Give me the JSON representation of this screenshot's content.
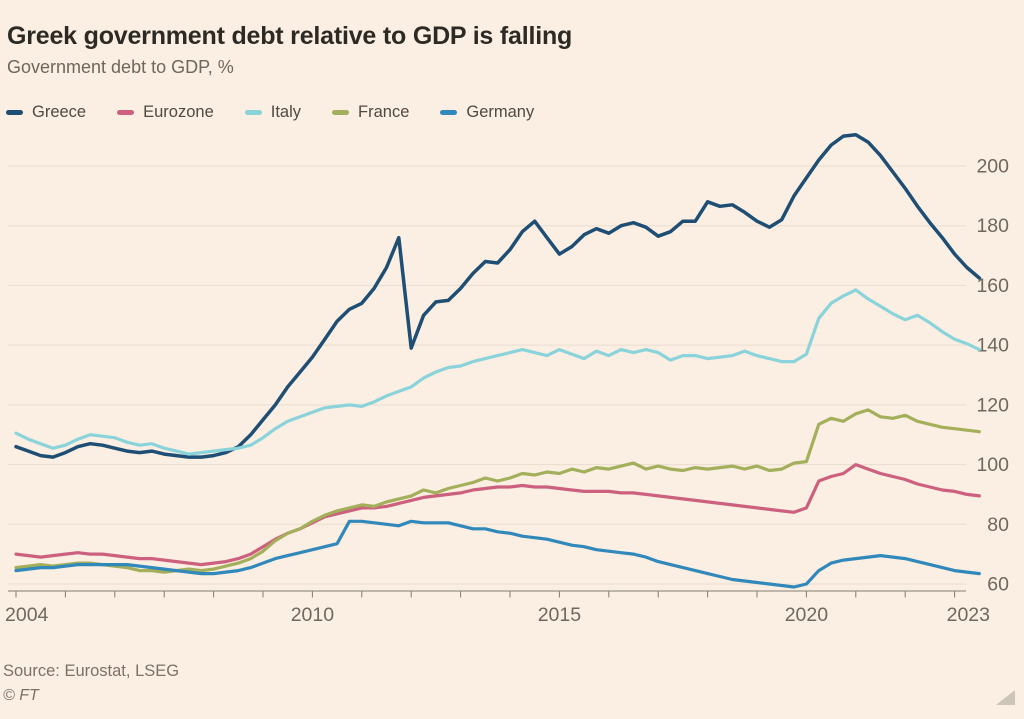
{
  "title": "Greek government debt relative to GDP is falling",
  "subtitle": "Government debt to GDP, %",
  "footer": {
    "source": "Source: Eurostat, LSEG",
    "credit": "© FT"
  },
  "colors": {
    "background": "#FAEFE2",
    "gridline": "#E9DDD0",
    "axis_line": "#837C70",
    "tick_label": "#6F685D",
    "title": "#2D2A25",
    "subtitle": "#6E675C",
    "legend_label": "#4F4942"
  },
  "chart_data": {
    "type": "line",
    "title": "Greek government debt relative to GDP is falling",
    "subtitle": "Government debt to GDP, %",
    "xlabel": "",
    "ylabel": "Government debt to GDP, %",
    "grid": true,
    "legend_position": "top",
    "x_start": 2004,
    "x_step": 0.25,
    "x_axis": {
      "ticks": [
        2004,
        2005,
        2006,
        2007,
        2008,
        2009,
        2010,
        2011,
        2012,
        2013,
        2014,
        2015,
        2016,
        2017,
        2018,
        2019,
        2020,
        2021,
        2022,
        2023
      ],
      "labeled_ticks": [
        "2004",
        "2010",
        "2015",
        "2020",
        "2023"
      ],
      "labeled_tick_years": [
        2004,
        2010,
        2015,
        2020,
        2023
      ]
    },
    "y_axis": {
      "ticks": [
        60,
        80,
        100,
        120,
        140,
        160,
        180,
        200
      ],
      "tick_labels": [
        "60",
        "80",
        "100",
        "120",
        "140",
        "160",
        "180",
        "200"
      ],
      "range": [
        55,
        214
      ]
    },
    "series": [
      {
        "name": "Greece",
        "color": "#1F4E75",
        "width": 3.5,
        "values": [
          106,
          104.5,
          103,
          102.5,
          104,
          106,
          107,
          106.5,
          105.5,
          104.5,
          104,
          104.5,
          103.5,
          103,
          102.5,
          102.5,
          103,
          104,
          106,
          110,
          115,
          120,
          126,
          131,
          136,
          142,
          148,
          152,
          154,
          159,
          166,
          176,
          139,
          150,
          154.5,
          155,
          159,
          164,
          168,
          167.5,
          172,
          178,
          181.5,
          176,
          170.5,
          173,
          177,
          179,
          177.5,
          180,
          181,
          179.5,
          176.5,
          178,
          181.5,
          181.5,
          188,
          186.5,
          187,
          184.5,
          181.5,
          179.5,
          182,
          190,
          196,
          202,
          207,
          210,
          210.5,
          208,
          203.5,
          198,
          192.5,
          186.5,
          181,
          176,
          170.5,
          166,
          162.5
        ]
      },
      {
        "name": "Eurozone",
        "color": "#CC607E",
        "width": 3.2,
        "values": [
          70,
          69.5,
          69,
          69.5,
          70,
          70.5,
          70,
          70,
          69.5,
          69,
          68.5,
          68.5,
          68,
          67.5,
          67,
          66.5,
          67,
          67.5,
          68.5,
          70,
          72.5,
          75,
          77,
          78.5,
          80.5,
          82.5,
          83.5,
          84.5,
          85.5,
          85.5,
          86,
          87,
          88,
          89,
          89.5,
          90,
          90.5,
          91.5,
          92,
          92.5,
          92.5,
          93,
          92.5,
          92.5,
          92,
          91.5,
          91,
          91,
          91,
          90.5,
          90.5,
          90,
          89.5,
          89,
          88.5,
          88,
          87.5,
          87,
          86.5,
          86,
          85.5,
          85,
          84.5,
          84,
          85.5,
          94.5,
          96,
          97,
          100,
          98.5,
          97,
          96,
          95,
          93.5,
          92.5,
          91.5,
          91,
          90,
          89.5
        ]
      },
      {
        "name": "Italy",
        "color": "#8BD3DA",
        "width": 3.2,
        "values": [
          110.5,
          108.5,
          107,
          105.5,
          106.5,
          108.5,
          110,
          109.5,
          109,
          107.5,
          106.5,
          107,
          105.5,
          104.5,
          103.5,
          104,
          104.5,
          105,
          105.5,
          106.5,
          109,
          112,
          114.5,
          116,
          117.5,
          119,
          119.5,
          120,
          119.5,
          121,
          123,
          124.5,
          126,
          129,
          131,
          132.5,
          133,
          134.5,
          135.5,
          136.5,
          137.5,
          138.5,
          137.5,
          136.5,
          138.5,
          137,
          135.5,
          138,
          136.5,
          138.5,
          137.5,
          138.5,
          137.5,
          135,
          136.5,
          136.5,
          135.5,
          136,
          136.5,
          138,
          136.5,
          135.5,
          134.5,
          134.5,
          137,
          149,
          154,
          156.5,
          158.5,
          155.5,
          153,
          150.5,
          148.5,
          150,
          147.5,
          144.5,
          142,
          140.5,
          138.5
        ]
      },
      {
        "name": "France",
        "color": "#A3AF5A",
        "width": 3.2,
        "values": [
          65.5,
          66,
          66.5,
          66,
          66.5,
          67,
          67,
          66.5,
          66,
          65.5,
          64.5,
          64.5,
          64,
          64.5,
          65,
          64.5,
          65,
          66,
          67,
          68.5,
          71,
          74.5,
          77,
          78.5,
          81,
          83,
          84.5,
          85.5,
          86.5,
          86,
          87.5,
          88.5,
          89.5,
          91.5,
          90.5,
          92,
          93,
          94,
          95.5,
          94.5,
          95.5,
          97,
          96.5,
          97.5,
          97,
          98.5,
          97.5,
          99,
          98.5,
          99.5,
          100.5,
          98.5,
          99.5,
          98.5,
          98,
          99,
          98.5,
          99,
          99.5,
          98.5,
          99.5,
          98,
          98.5,
          100.5,
          101,
          113.5,
          115.5,
          114.5,
          117,
          118.3,
          116,
          115.5,
          116.5,
          114.5,
          113.5,
          112.5,
          112,
          111.5,
          111
        ]
      },
      {
        "name": "Germany",
        "color": "#3188BB",
        "width": 3.2,
        "values": [
          64.5,
          65,
          65.5,
          65.5,
          66,
          66.5,
          66.5,
          66.5,
          66.5,
          66.5,
          66,
          65.5,
          65,
          64.5,
          64,
          63.5,
          63.5,
          64,
          64.5,
          65.5,
          67,
          68.5,
          69.5,
          70.5,
          71.5,
          72.5,
          73.5,
          81,
          81,
          80.5,
          80,
          79.5,
          81,
          80.5,
          80.5,
          80.5,
          79.5,
          78.5,
          78.5,
          77.5,
          77,
          76,
          75.5,
          75,
          74,
          73,
          72.5,
          71.5,
          71,
          70.5,
          70,
          69,
          67.5,
          66.5,
          65.5,
          64.5,
          63.5,
          62.5,
          61.5,
          61,
          60.5,
          60,
          59.5,
          59,
          60,
          64.5,
          67,
          68,
          68.5,
          69,
          69.5,
          69,
          68.5,
          67.5,
          66.5,
          65.5,
          64.5,
          64,
          63.5
        ]
      }
    ]
  }
}
